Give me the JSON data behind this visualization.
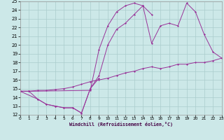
{
  "xlabel": "Windchill (Refroidissement éolien,°C)",
  "bg_color": "#cce8e8",
  "grid_color": "#aacccc",
  "line_color": "#993399",
  "xlim": [
    0,
    23
  ],
  "ylim": [
    12,
    25
  ],
  "xticks": [
    0,
    1,
    2,
    3,
    4,
    5,
    6,
    7,
    8,
    9,
    10,
    11,
    12,
    13,
    14,
    15,
    16,
    17,
    18,
    19,
    20,
    21,
    22,
    23
  ],
  "yticks": [
    12,
    13,
    14,
    15,
    16,
    17,
    18,
    19,
    20,
    21,
    22,
    23,
    24,
    25
  ],
  "series": [
    {
      "x": [
        0,
        1,
        2,
        3,
        4,
        5,
        6,
        7,
        8,
        9
      ],
      "y": [
        14.7,
        14.7,
        13.8,
        13.2,
        13.0,
        12.8,
        12.8,
        12.2,
        15.0,
        16.2
      ]
    },
    {
      "x": [
        0,
        1,
        8,
        9,
        10,
        11,
        12,
        13,
        14,
        15
      ],
      "y": [
        14.7,
        14.7,
        14.8,
        19.5,
        22.2,
        23.8,
        24.5,
        24.8,
        24.5,
        23.5
      ]
    },
    {
      "x": [
        0,
        2,
        3,
        4,
        5,
        6,
        7,
        8,
        9,
        10,
        11,
        12,
        13,
        14,
        15,
        16,
        17,
        18,
        19,
        20,
        21,
        22,
        23
      ],
      "y": [
        14.7,
        13.8,
        13.2,
        13.0,
        12.8,
        12.8,
        12.2,
        15.0,
        16.5,
        20.0,
        21.8,
        22.5,
        23.5,
        24.5,
        20.2,
        22.2,
        22.5,
        22.2,
        24.8,
        23.8,
        21.2,
        19.2,
        18.5
      ]
    },
    {
      "x": [
        0,
        1,
        2,
        3,
        4,
        5,
        6,
        7,
        8,
        9,
        10,
        11,
        12,
        13,
        14,
        15,
        16,
        17,
        18,
        19,
        20,
        21,
        22,
        23
      ],
      "y": [
        14.7,
        14.7,
        14.8,
        14.8,
        14.9,
        15.0,
        15.2,
        15.5,
        15.8,
        16.0,
        16.2,
        16.5,
        16.8,
        17.0,
        17.3,
        17.5,
        17.3,
        17.5,
        17.8,
        17.8,
        18.0,
        18.0,
        18.2,
        18.5
      ]
    }
  ]
}
